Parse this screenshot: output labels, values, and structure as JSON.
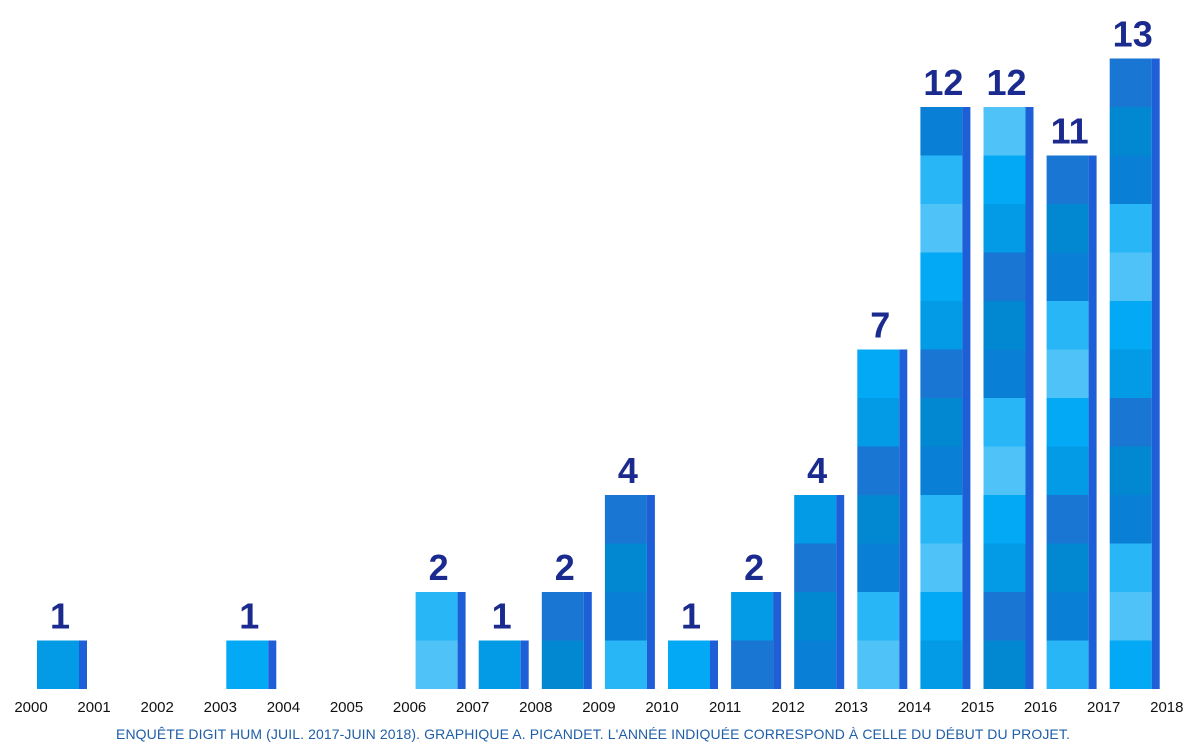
{
  "chart_data": {
    "type": "bar",
    "x_ticks": [
      "2000",
      "2001",
      "2002",
      "2003",
      "2004",
      "2005",
      "2006",
      "2007",
      "2008",
      "2009",
      "2010",
      "2011",
      "2012",
      "2013",
      "2014",
      "2015",
      "2016",
      "2017",
      "2018"
    ],
    "categories": [
      "2000",
      "2003",
      "2006",
      "2007",
      "2008",
      "2009",
      "2010",
      "2011",
      "2012",
      "2013",
      "2014",
      "2015",
      "2016",
      "2017"
    ],
    "values": [
      1,
      1,
      2,
      1,
      2,
      4,
      1,
      2,
      4,
      7,
      12,
      12,
      11,
      13
    ],
    "data_labels": [
      "1",
      "1",
      "2",
      "1",
      "2",
      "4",
      "1",
      "2",
      "4",
      "7",
      "12",
      "12",
      "11",
      "13"
    ],
    "ylim": [
      0,
      13
    ],
    "grid": false,
    "legend": "none",
    "colors": {
      "segments": [
        "#039be5",
        "#0a7fd6",
        "#03a9f4",
        "#0288d1",
        "#4fc3f7",
        "#1976d2",
        "#29b6f6"
      ],
      "edge": "#1e5fd8",
      "label": "#1b2a8f",
      "caption": "#1f5ea8"
    }
  },
  "caption": "ENQUÊTE DIGIT HUM (JUIL. 2017-JUIN 2018). GRAPHIQUE A. PICANDET. L'ANNÉE INDIQUÉE CORRESPOND À CELLE DU DÉBUT DU PROJET."
}
